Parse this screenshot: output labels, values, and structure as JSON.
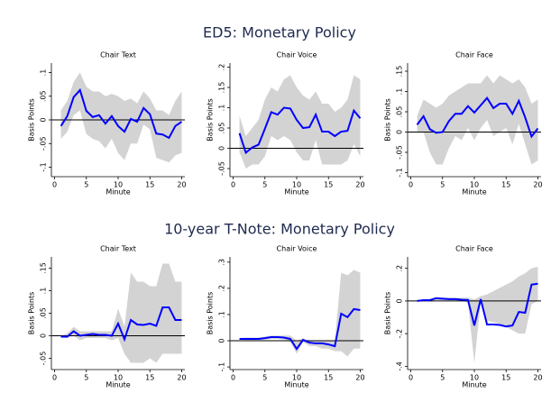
{
  "figure_titles": [
    "ED5: Monetary Policy",
    "10-year T-Note: Monetary Policy"
  ],
  "chart_data": [
    {
      "type": "line",
      "title": "Chair Text",
      "xlabel": "Minute",
      "ylabel": "Basis Points",
      "x": [
        1,
        2,
        3,
        4,
        5,
        6,
        7,
        8,
        9,
        10,
        11,
        12,
        13,
        14,
        15,
        16,
        17,
        18,
        19,
        20
      ],
      "values": [
        -0.013,
        0.008,
        0.048,
        0.063,
        0.019,
        0.006,
        0.01,
        -0.008,
        0.008,
        -0.013,
        -0.025,
        0.002,
        -0.004,
        0.025,
        0.012,
        -0.029,
        -0.031,
        -0.038,
        -0.013,
        -0.004
      ],
      "lower": [
        -0.04,
        -0.025,
        0.01,
        0.02,
        -0.03,
        -0.04,
        -0.045,
        -0.06,
        -0.04,
        -0.07,
        -0.085,
        -0.05,
        -0.05,
        -0.01,
        -0.02,
        -0.08,
        -0.085,
        -0.09,
        -0.075,
        -0.07
      ],
      "upper": [
        0.02,
        0.04,
        0.08,
        0.1,
        0.07,
        0.06,
        0.06,
        0.05,
        0.055,
        0.05,
        0.04,
        0.045,
        0.035,
        0.06,
        0.045,
        0.02,
        0.02,
        0.01,
        0.04,
        0.06
      ],
      "color": "#0000ff",
      "band_color": "#d3d3d3",
      "refline": 0,
      "xlim": [
        -0.5,
        20.5
      ],
      "xticks": [
        0,
        5,
        10,
        15,
        20
      ],
      "ylim": [
        -0.12,
        0.12
      ],
      "yticks": [
        {
          "value": -0.1,
          "label": "-.1"
        },
        {
          "value": -0.05,
          "label": "-.05"
        },
        0,
        {
          "value": 0.05,
          "label": ".05"
        },
        {
          "value": 0.1,
          "label": ".1"
        }
      ]
    },
    {
      "type": "line",
      "title": "Chair Voice",
      "xlabel": "Minute",
      "ylabel": "Basis Points",
      "x": [
        1,
        2,
        3,
        4,
        5,
        6,
        7,
        8,
        9,
        10,
        11,
        12,
        13,
        14,
        15,
        16,
        17,
        18,
        19,
        20
      ],
      "values": [
        0.037,
        -0.011,
        0.002,
        0.009,
        0.048,
        0.089,
        0.083,
        0.1,
        0.098,
        0.07,
        0.05,
        0.052,
        0.083,
        0.041,
        0.041,
        0.03,
        0.041,
        0.043,
        0.093,
        0.074
      ],
      "lower": [
        -0.01,
        -0.05,
        -0.04,
        -0.04,
        -0.02,
        0.03,
        0.02,
        0.03,
        0.02,
        -0.01,
        -0.03,
        -0.03,
        0.02,
        -0.04,
        -0.04,
        -0.04,
        -0.04,
        -0.03,
        0.01,
        -0.02
      ],
      "upper": [
        0.08,
        0.03,
        0.05,
        0.07,
        0.12,
        0.15,
        0.14,
        0.17,
        0.18,
        0.15,
        0.13,
        0.12,
        0.14,
        0.11,
        0.11,
        0.09,
        0.1,
        0.12,
        0.18,
        0.17
      ],
      "color": "#0000ff",
      "band_color": "#d3d3d3",
      "refline": 0,
      "xlim": [
        -0.5,
        20.5
      ],
      "xticks": [
        0,
        5,
        10,
        15,
        20
      ],
      "ylim": [
        -0.07,
        0.21
      ],
      "yticks": [
        {
          "value": -0.05,
          "label": "-.05"
        },
        0,
        {
          "value": 0.05,
          "label": ".05"
        },
        {
          "value": 0.1,
          "label": ".1"
        },
        {
          "value": 0.15,
          "label": ".15"
        },
        {
          "value": 0.2,
          "label": ".2"
        }
      ]
    },
    {
      "type": "line",
      "title": "Chair Face",
      "xlabel": "Minute",
      "ylabel": "Basis Points",
      "x": [
        1,
        2,
        3,
        4,
        5,
        6,
        7,
        8,
        9,
        10,
        11,
        12,
        13,
        14,
        15,
        16,
        17,
        18,
        19,
        20
      ],
      "values": [
        0.018,
        0.039,
        0.007,
        -0.002,
        0,
        0.027,
        0.045,
        0.045,
        0.064,
        0.048,
        0.066,
        0.084,
        0.059,
        0.07,
        0.07,
        0.045,
        0.077,
        0.036,
        -0.011,
        0.009
      ],
      "lower": [
        0,
        0,
        -0.05,
        -0.08,
        -0.08,
        -0.04,
        -0.01,
        -0.02,
        0.01,
        -0.02,
        0.01,
        0.03,
        -0.01,
        0,
        0.01,
        -0.03,
        0.02,
        -0.03,
        -0.08,
        -0.07
      ],
      "upper": [
        0.04,
        0.08,
        0.07,
        0.06,
        0.07,
        0.09,
        0.1,
        0.11,
        0.12,
        0.12,
        0.12,
        0.14,
        0.12,
        0.14,
        0.13,
        0.12,
        0.13,
        0.11,
        0.07,
        0.08
      ],
      "color": "#0000ff",
      "band_color": "#d3d3d3",
      "refline": 0,
      "xlim": [
        -0.5,
        20.5
      ],
      "xticks": [
        0,
        5,
        10,
        15,
        20
      ],
      "ylim": [
        -0.11,
        0.17
      ],
      "yticks": [
        {
          "value": -0.1,
          "label": "-.1"
        },
        {
          "value": -0.05,
          "label": "-.05"
        },
        0,
        {
          "value": 0.05,
          "label": ".05"
        },
        {
          "value": 0.1,
          "label": ".1"
        },
        {
          "value": 0.15,
          "label": ".15"
        }
      ]
    },
    {
      "type": "line",
      "title": "Chair Text",
      "xlabel": "Minute",
      "ylabel": "Basis Points",
      "x": [
        1,
        2,
        3,
        4,
        5,
        6,
        7,
        8,
        9,
        10,
        11,
        12,
        13,
        14,
        15,
        16,
        17,
        18,
        19,
        20
      ],
      "values": [
        -0.002,
        -0.002,
        0.01,
        0,
        0.002,
        0.004,
        0.002,
        0.002,
        0,
        0.027,
        -0.008,
        0.035,
        0.025,
        0.024,
        0.027,
        0.022,
        0.063,
        0.063,
        0.035,
        0.035
      ],
      "lower": [
        -0.004,
        -0.005,
        0,
        -0.01,
        -0.005,
        -0.005,
        -0.005,
        -0.005,
        -0.01,
        -0.005,
        -0.04,
        -0.06,
        -0.06,
        -0.06,
        -0.05,
        -0.06,
        -0.04,
        -0.04,
        -0.04,
        -0.04
      ],
      "upper": [
        0,
        0.005,
        0.02,
        0.01,
        0.01,
        0.01,
        0.01,
        0.01,
        0.01,
        0.06,
        0.02,
        0.14,
        0.12,
        0.12,
        0.11,
        0.11,
        0.16,
        0.16,
        0.12,
        0.12
      ],
      "color": "#0000ff",
      "band_color": "#d3d3d3",
      "refline": 0,
      "xlim": [
        -0.5,
        20.5
      ],
      "xticks": [
        0,
        5,
        10,
        15,
        20
      ],
      "ylim": [
        -0.075,
        0.175
      ],
      "yticks": [
        {
          "value": -0.05,
          "label": "-.05"
        },
        0,
        {
          "value": 0.05,
          "label": ".05"
        },
        {
          "value": 0.1,
          "label": ".1"
        },
        {
          "value": 0.15,
          "label": ".15"
        }
      ]
    },
    {
      "type": "line",
      "title": "Chair Voice",
      "xlabel": "Minute",
      "ylabel": "Basis Points",
      "x": [
        1,
        2,
        3,
        4,
        5,
        6,
        7,
        8,
        9,
        10,
        11,
        12,
        13,
        14,
        15,
        16,
        17,
        18,
        19,
        20
      ],
      "values": [
        0.007,
        0.007,
        0.007,
        0.007,
        0.01,
        0.014,
        0.014,
        0.012,
        0.007,
        -0.031,
        0.003,
        -0.007,
        -0.01,
        -0.01,
        -0.014,
        -0.021,
        0.103,
        0.09,
        0.121,
        0.117
      ],
      "lower": [
        0.004,
        0.003,
        0.003,
        0.003,
        0.004,
        0.007,
        0.007,
        0.005,
        -0.005,
        -0.05,
        -0.005,
        -0.02,
        -0.02,
        -0.03,
        -0.03,
        -0.04,
        -0.04,
        -0.06,
        -0.03,
        -0.03
      ],
      "upper": [
        0.01,
        0.012,
        0.012,
        0.012,
        0.016,
        0.02,
        0.02,
        0.02,
        0.02,
        0,
        0.01,
        0,
        0,
        0,
        0,
        0,
        0.26,
        0.25,
        0.27,
        0.26
      ],
      "color": "#0000ff",
      "band_color": "#d3d3d3",
      "refline": 0,
      "xlim": [
        -0.5,
        20.5
      ],
      "xticks": [
        0,
        5,
        10,
        15,
        20
      ],
      "ylim": [
        -0.11,
        0.32
      ],
      "yticks": [
        {
          "value": -0.1,
          "label": "-.1"
        },
        0,
        {
          "value": 0.1,
          "label": ".1"
        },
        {
          "value": 0.2,
          "label": ".2"
        },
        {
          "value": 0.3,
          "label": ".3"
        }
      ]
    },
    {
      "type": "line",
      "title": "Chair Face",
      "xlabel": "Minute",
      "ylabel": "Basis Points",
      "x": [
        1,
        2,
        3,
        4,
        5,
        6,
        7,
        8,
        9,
        10,
        11,
        12,
        13,
        14,
        15,
        16,
        17,
        18,
        19,
        20
      ],
      "values": [
        0,
        0.005,
        0.005,
        0.017,
        0.014,
        0.011,
        0.011,
        0.008,
        0.006,
        -0.15,
        0.011,
        -0.144,
        -0.144,
        -0.147,
        -0.156,
        -0.15,
        -0.067,
        -0.072,
        0.1,
        0.106
      ],
      "lower": [
        -0.005,
        0,
        0,
        0.005,
        0.005,
        0.005,
        0.005,
        0,
        -0.01,
        -0.38,
        -0.01,
        -0.12,
        -0.13,
        -0.14,
        -0.16,
        -0.18,
        -0.2,
        -0.2,
        -0.02,
        0
      ],
      "upper": [
        0,
        0.01,
        0.01,
        0.025,
        0.02,
        0.02,
        0.02,
        0.02,
        0.02,
        0.01,
        0.03,
        0.04,
        0.06,
        0.08,
        0.1,
        0.12,
        0.15,
        0.17,
        0.2,
        0.21
      ],
      "color": "#0000ff",
      "band_color": "#d3d3d3",
      "refline": 0,
      "xlim": [
        -0.5,
        20.5
      ],
      "xticks": [
        0,
        5,
        10,
        15,
        20
      ],
      "ylim": [
        -0.42,
        0.27
      ],
      "yticks": [
        {
          "value": -0.4,
          "label": "-.4"
        },
        {
          "value": -0.2,
          "label": "-.2"
        },
        0,
        {
          "value": 0.2,
          "label": ".2"
        }
      ]
    }
  ]
}
